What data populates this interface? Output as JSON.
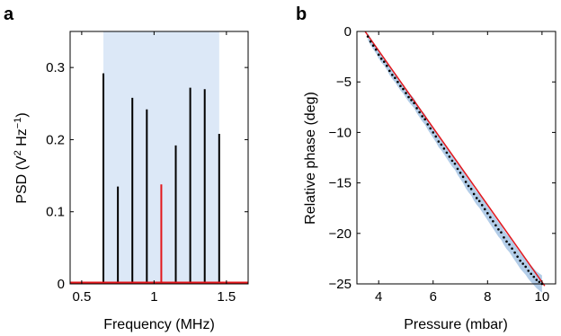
{
  "chart_data": [
    {
      "panel_label": "a",
      "type": "bar",
      "xlabel": "Frequency (MHz)",
      "ylabel": "PSD (V",
      "ylabel_sup1": "2",
      "ylabel_mid": " Hz",
      "ylabel_sup2": "−1",
      "ylabel_end": ")",
      "xlim": [
        0.42,
        1.65
      ],
      "ylim": [
        0,
        0.35
      ],
      "xticks": [
        0.5,
        1,
        1.5
      ],
      "xtick_labels": [
        "0.5",
        "1",
        "1.5"
      ],
      "yticks": [
        0,
        0.1,
        0.2,
        0.3
      ],
      "ytick_labels": [
        "0",
        "0.1",
        "0.2",
        "0.3"
      ],
      "shaded_band": [
        0.65,
        1.45
      ],
      "band_color": "#dce8f7",
      "series": [
        {
          "color": "#000000",
          "x": [
            0.65,
            0.75,
            0.85,
            0.95,
            1.15,
            1.25,
            1.35,
            1.45
          ],
          "values": [
            0.292,
            0.135,
            0.258,
            0.242,
            0.192,
            0.272,
            0.27,
            0.208
          ]
        },
        {
          "color": "#e3161b",
          "x": [
            1.05
          ],
          "values": [
            0.138
          ]
        }
      ],
      "baseline_color": "#e3161b"
    },
    {
      "panel_label": "b",
      "type": "scatter",
      "xlabel": "Pressure (mbar)",
      "ylabel": "Relative phase (deg)",
      "xlim": [
        3.2,
        10.5
      ],
      "ylim": [
        -25,
        0
      ],
      "xticks": [
        4,
        6,
        8,
        10
      ],
      "xtick_labels": [
        "4",
        "6",
        "8",
        "10"
      ],
      "yticks": [
        0,
        -5,
        -10,
        -15,
        -20,
        -25
      ],
      "ytick_labels": [
        "0",
        "−5",
        "−10",
        "−15",
        "−20",
        "−25"
      ],
      "fit_line": {
        "x": [
          3.5,
          10.1
        ],
        "y": [
          0,
          -25.2
        ],
        "color": "#e3161b"
      },
      "band_color": "#b3cde8",
      "point_color": "#000000",
      "points": {
        "x": [
          3.6,
          3.7,
          3.8,
          3.9,
          4.0,
          4.1,
          4.2,
          4.3,
          4.4,
          4.5,
          4.6,
          4.7,
          4.8,
          4.9,
          5.0,
          5.1,
          5.2,
          5.3,
          5.4,
          5.5,
          5.6,
          5.7,
          5.8,
          5.9,
          6.0,
          6.1,
          6.2,
          6.3,
          6.4,
          6.5,
          6.6,
          6.7,
          6.8,
          6.9,
          7.0,
          7.1,
          7.2,
          7.3,
          7.4,
          7.5,
          7.6,
          7.7,
          7.8,
          7.9,
          8.0,
          8.1,
          8.2,
          8.3,
          8.4,
          8.5,
          8.6,
          8.7,
          8.8,
          8.9,
          9.0,
          9.1,
          9.2,
          9.3,
          9.4,
          9.5,
          9.6,
          9.7,
          9.8,
          9.9,
          10.0
        ],
        "y": [
          -0.5,
          -1.0,
          -1.4,
          -1.8,
          -2.3,
          -2.7,
          -3.0,
          -3.4,
          -3.9,
          -4.3,
          -4.6,
          -5.0,
          -5.4,
          -5.7,
          -6.1,
          -6.5,
          -6.8,
          -7.1,
          -7.6,
          -8.0,
          -8.4,
          -8.7,
          -9.2,
          -9.6,
          -10.0,
          -10.4,
          -10.9,
          -11.2,
          -11.6,
          -12.0,
          -12.4,
          -12.8,
          -13.1,
          -13.6,
          -14.0,
          -14.4,
          -14.9,
          -15.3,
          -15.6,
          -16.1,
          -16.5,
          -16.8,
          -17.2,
          -17.6,
          -18.0,
          -18.4,
          -18.8,
          -19.2,
          -19.6,
          -19.9,
          -20.4,
          -20.8,
          -21.1,
          -21.5,
          -21.9,
          -22.3,
          -22.7,
          -23.0,
          -23.3,
          -23.7,
          -24.0,
          -24.3,
          -24.6,
          -24.8,
          -25.0
        ]
      }
    }
  ]
}
